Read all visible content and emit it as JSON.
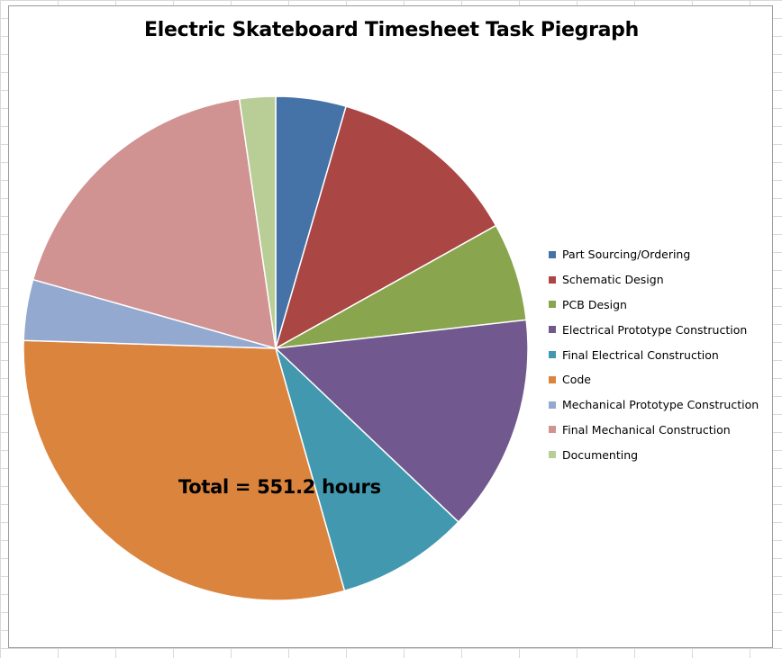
{
  "chart_data": {
    "type": "pie",
    "title": "Electric Skateboard Timesheet Task Piegraph",
    "annotation": "Total = 551.2 hours",
    "legend_position": "right",
    "categories": [
      "Part Sourcing/Ordering",
      "Schematic Design",
      "PCB Design",
      "Electrical Prototype Construction",
      "Final Electrical Construction",
      "Code",
      "Mechanical Prototype Construction",
      "Final Mechanical Construction",
      "Documenting"
    ],
    "values": [
      4.5,
      12.4,
      6.3,
      13.9,
      8.5,
      29.9,
      3.9,
      18.3,
      2.3
    ],
    "colors": [
      "#4572a7",
      "#aa4643",
      "#89a54e",
      "#71588f",
      "#4198af",
      "#db843d",
      "#93a9cf",
      "#d19392",
      "#b9cd96"
    ]
  }
}
